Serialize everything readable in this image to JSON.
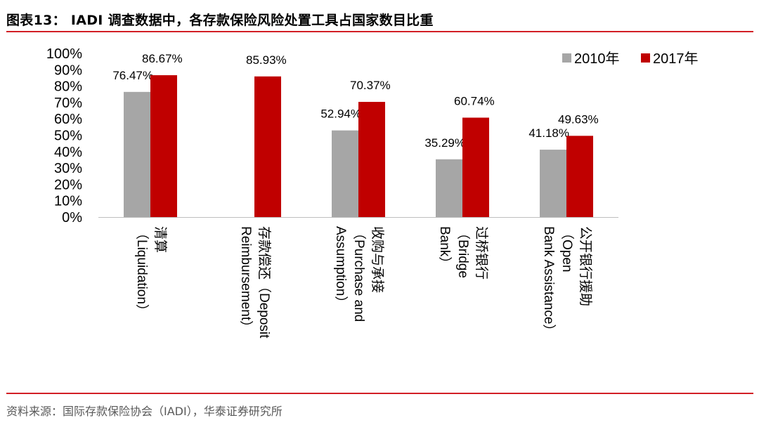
{
  "figure": {
    "title": "图表13：  IADI 调查数据中，各存款保险风险处置工具占国家数目比重",
    "source": "资料来源：国际存款保险协会（IADI），华泰证券研究所"
  },
  "colors": {
    "accent": "#d21f26",
    "series_2010": "#a6a6a6",
    "series_2017": "#c00000"
  },
  "chart_data": {
    "type": "bar",
    "categories": [
      [
        "清算",
        "（Liquidation）"
      ],
      [
        "存款偿还（Deposit",
        "Reimbursement）"
      ],
      [
        "收购与承接",
        "（Purchase and",
        "Assumption）"
      ],
      [
        "过桥银行",
        "（Bridge",
        "Bank）"
      ],
      [
        "公开银行援助",
        "（Open",
        "Bank Assistance）"
      ]
    ],
    "series": [
      {
        "name": "2010年",
        "values": [
          76.47,
          null,
          52.94,
          35.29,
          41.18
        ],
        "labels": [
          "76.47%",
          "",
          "52.94%",
          "35.29%",
          "41.18%"
        ]
      },
      {
        "name": "2017年",
        "values": [
          86.67,
          85.93,
          70.37,
          60.74,
          49.63
        ],
        "labels": [
          "86.67%",
          "85.93%",
          "70.37%",
          "60.74%",
          "49.63%"
        ]
      }
    ],
    "ylim": [
      0,
      100
    ],
    "yticks": [
      "0%",
      "10%",
      "20%",
      "30%",
      "40%",
      "50%",
      "60%",
      "70%",
      "80%",
      "90%",
      "100%"
    ],
    "grid": false,
    "legend": "top-right"
  }
}
